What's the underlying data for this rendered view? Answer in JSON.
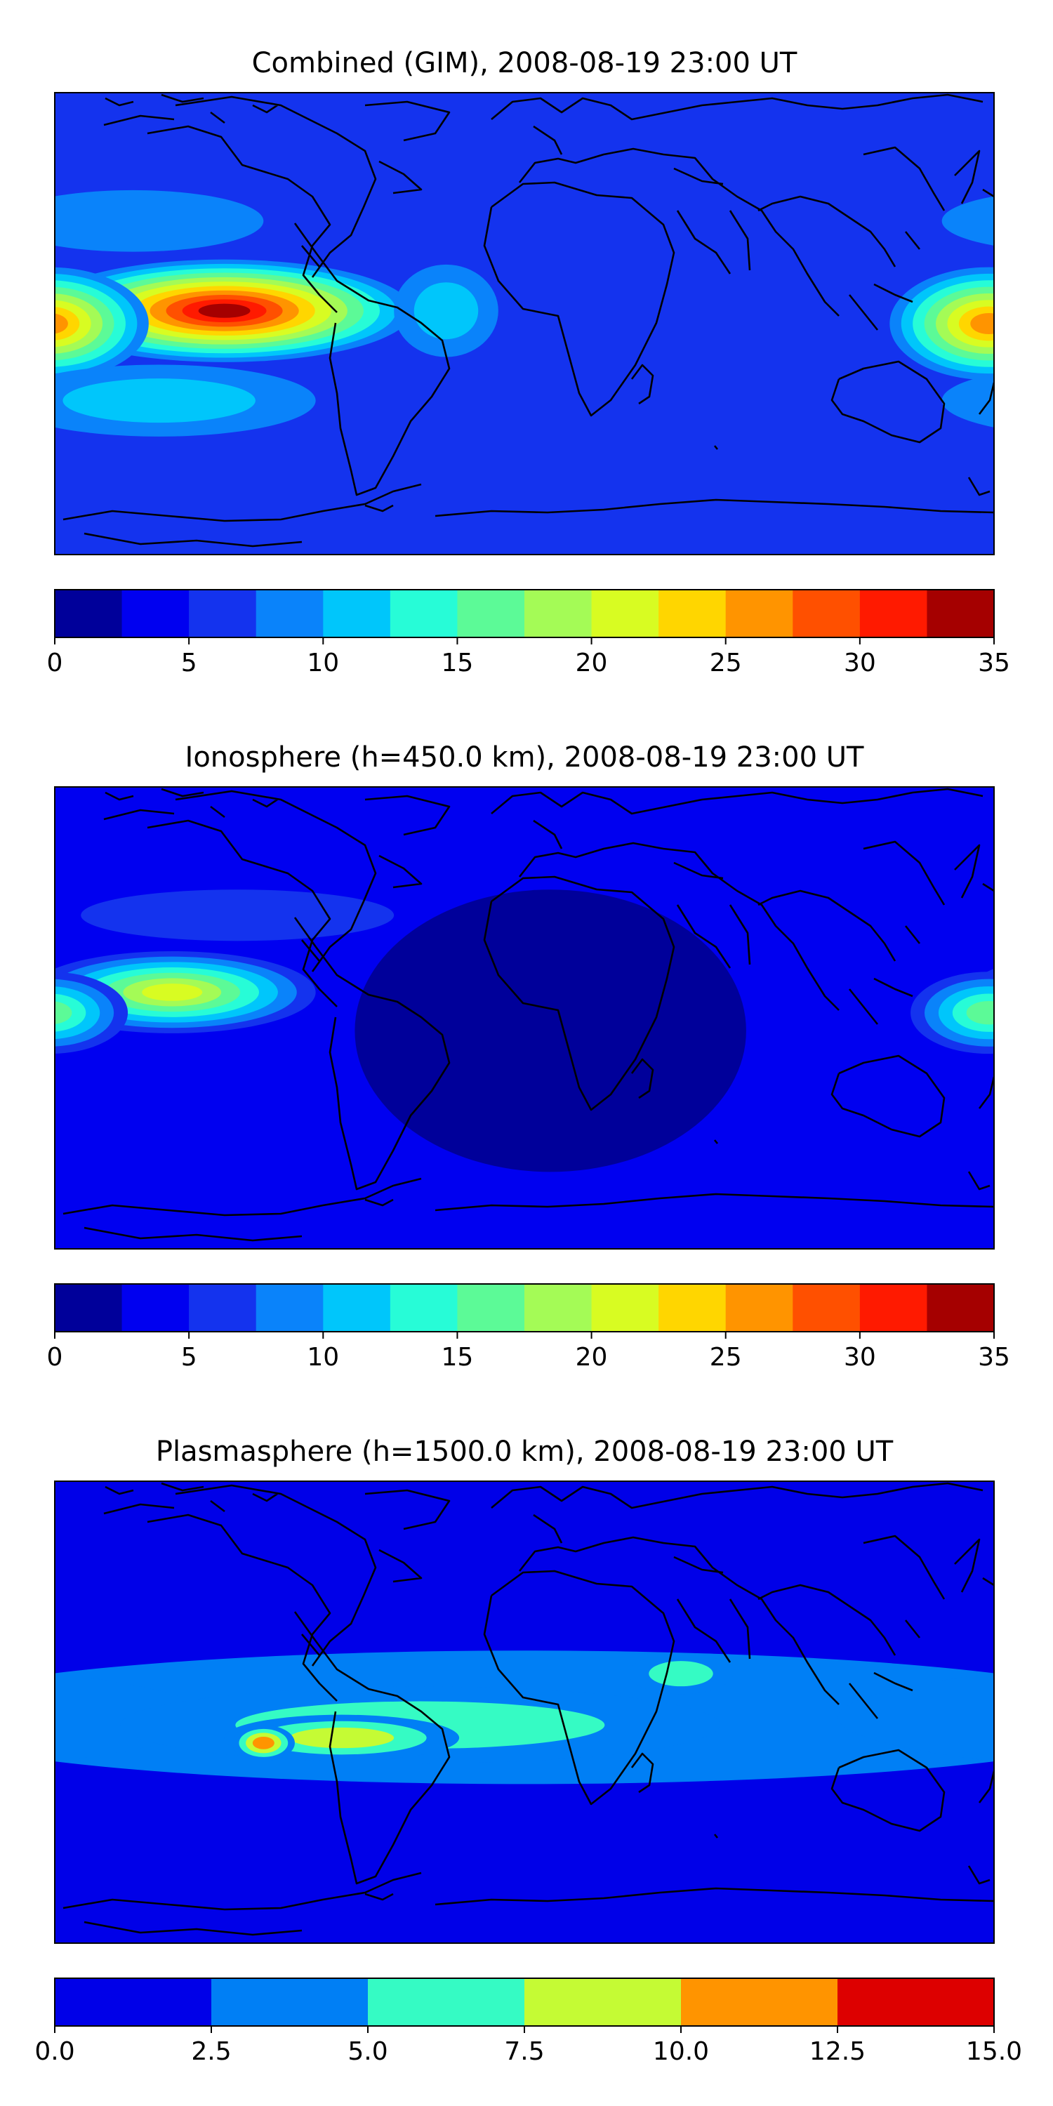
{
  "chart_data": [
    {
      "type": "heatmap",
      "title": "Combined (GIM), 2008-08-19 23:00 UT",
      "colorbar": {
        "levels": [
          0,
          2.5,
          5,
          7.5,
          10,
          12.5,
          15,
          17.5,
          20,
          22.5,
          25,
          27.5,
          30,
          32.5,
          35
        ],
        "colors": [
          "#00009a",
          "#0000f0",
          "#1433ee",
          "#0a83fa",
          "#00c6fb",
          "#27fcd7",
          "#5cfa97",
          "#a4fb56",
          "#d8fc22",
          "#ffd600",
          "#ff9400",
          "#ff5000",
          "#ff1a00",
          "#a50000"
        ],
        "ticks": [
          "0",
          "5",
          "10",
          "15",
          "20",
          "25",
          "30",
          "35"
        ]
      },
      "background_level": 2,
      "features": [
        {
          "name": "east-pacific-peak",
          "lon": -115,
          "lat": 5,
          "rx_deg": 72,
          "ry_deg": 20,
          "peak_level": 13
        },
        {
          "name": "west-pacific-peak",
          "lon": 178,
          "lat": 0,
          "rx_deg": 38,
          "ry_deg": 22,
          "peak_level": 10
        },
        {
          "name": "atlantic-tongue",
          "lon": -30,
          "lat": 5,
          "rx_deg": 20,
          "ry_deg": 18,
          "peak_level": 4
        },
        {
          "name": "southern-pacific-band",
          "lon": -140,
          "lat": -30,
          "rx_deg": 60,
          "ry_deg": 14,
          "peak_level": 4
        },
        {
          "name": "northern-pacific-band",
          "lon": -150,
          "lat": 40,
          "rx_deg": 50,
          "ry_deg": 12,
          "peak_level": 3
        }
      ]
    },
    {
      "type": "heatmap",
      "title": "Ionosphere  (h=450.0 km), 2008-08-19 23:00 UT",
      "colorbar": {
        "levels": [
          0,
          2.5,
          5,
          7.5,
          10,
          12.5,
          15,
          17.5,
          20,
          22.5,
          25,
          27.5,
          30,
          32.5,
          35
        ],
        "colors": [
          "#00009a",
          "#0000f0",
          "#1433ee",
          "#0a83fa",
          "#00c6fb",
          "#27fcd7",
          "#5cfa97",
          "#a4fb56",
          "#d8fc22",
          "#ffd600",
          "#ff9400",
          "#ff5000",
          "#ff1a00",
          "#a50000"
        ],
        "ticks": [
          "0",
          "5",
          "10",
          "15",
          "20",
          "25",
          "30",
          "35"
        ]
      },
      "background_level": 1,
      "features": [
        {
          "name": "atlantic-africa-trough",
          "lon": 10,
          "lat": -5,
          "rx_deg": 75,
          "ry_deg": 55,
          "peak_level": 0
        },
        {
          "name": "east-pacific-peak",
          "lon": -135,
          "lat": 10,
          "rx_deg": 55,
          "ry_deg": 16,
          "peak_level": 8
        },
        {
          "name": "west-pacific-peak",
          "lon": 178,
          "lat": 2,
          "rx_deg": 30,
          "ry_deg": 16,
          "peak_level": 6
        },
        {
          "name": "northern-americas-band",
          "lon": -110,
          "lat": 40,
          "rx_deg": 60,
          "ry_deg": 10,
          "peak_level": 2
        }
      ]
    },
    {
      "type": "heatmap",
      "title": "Plasmasphere (h=1500.0 km), 2008-08-19 23:00 UT",
      "colorbar": {
        "levels": [
          0.0,
          2.5,
          5.0,
          7.5,
          10.0,
          12.5,
          15.0
        ],
        "colors": [
          "#0000e8",
          "#007ff5",
          "#35fbc4",
          "#c5fb34",
          "#ff9400",
          "#dd0000"
        ],
        "ticks": [
          "0.0",
          "2.5",
          "5.0",
          "7.5",
          "10.0",
          "12.5",
          "15.0"
        ]
      },
      "background_level": 0,
      "features": [
        {
          "name": "equatorial-band",
          "lon": 0,
          "lat": -2,
          "rx_deg": 240,
          "ry_deg": 26,
          "peak_level": 1
        },
        {
          "name": "central-band",
          "lon": -40,
          "lat": -5,
          "rx_deg": 115,
          "ry_deg": 15,
          "peak_level": 2
        },
        {
          "name": "arabian-lobe",
          "lon": 60,
          "lat": 15,
          "rx_deg": 20,
          "ry_deg": 8,
          "peak_level": 2
        },
        {
          "name": "south-america-peak",
          "lon": -70,
          "lat": -10,
          "rx_deg": 45,
          "ry_deg": 9,
          "peak_level": 3
        },
        {
          "name": "south-america-core",
          "lon": -100,
          "lat": -12,
          "rx_deg": 12,
          "ry_deg": 7,
          "peak_level": 4
        }
      ]
    }
  ]
}
